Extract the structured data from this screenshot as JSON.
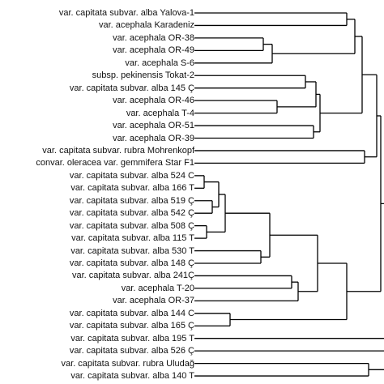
{
  "dendrogram": {
    "line_color": "#000000",
    "leaves": [
      "var. capitata subvar. alba Yalova-1",
      "var. acephala Karadeniz",
      "var. acephala OR-38",
      "var. acephala OR-49",
      "var. acephala S-6",
      "subsp. pekinensis Tokat-2",
      "var. capitata subvar. alba 145 Ç",
      "var. acephala OR-46",
      "var. acephala T-4",
      "var. acephala OR-51",
      "var. acephala OR-39",
      "var. capitata subvar. rubra Mohrenkopf",
      "convar. oleracea var. gemmifera Star F1",
      "var. capitata subvar. alba 524 C",
      "var. capitata subvar. alba 166 T",
      "var. capitata subvar. alba 519 Ç",
      "var. capitata subvar. alba 542 Ç",
      "var. capitata subvar. alba 508 Ç",
      "var. capitata subvar. alba 115 T",
      "var. capitata subvar. alba 530 T",
      "var. capitata subvar. alba 148 Ç",
      "var. capitata subvar. alba 241Ç",
      "var. acephala T-20",
      "var. acephala OR-37",
      "var. capitata subvar. alba 144 C",
      "var. capitata subvar. alba 165 Ç",
      "var. capitata subvar. alba 195 T",
      "var. capitata subvar. alba 526 Ç",
      "var. capitata subvar. rubra Uludağ",
      "var. capitata subvar. alba 140 T"
    ]
  }
}
